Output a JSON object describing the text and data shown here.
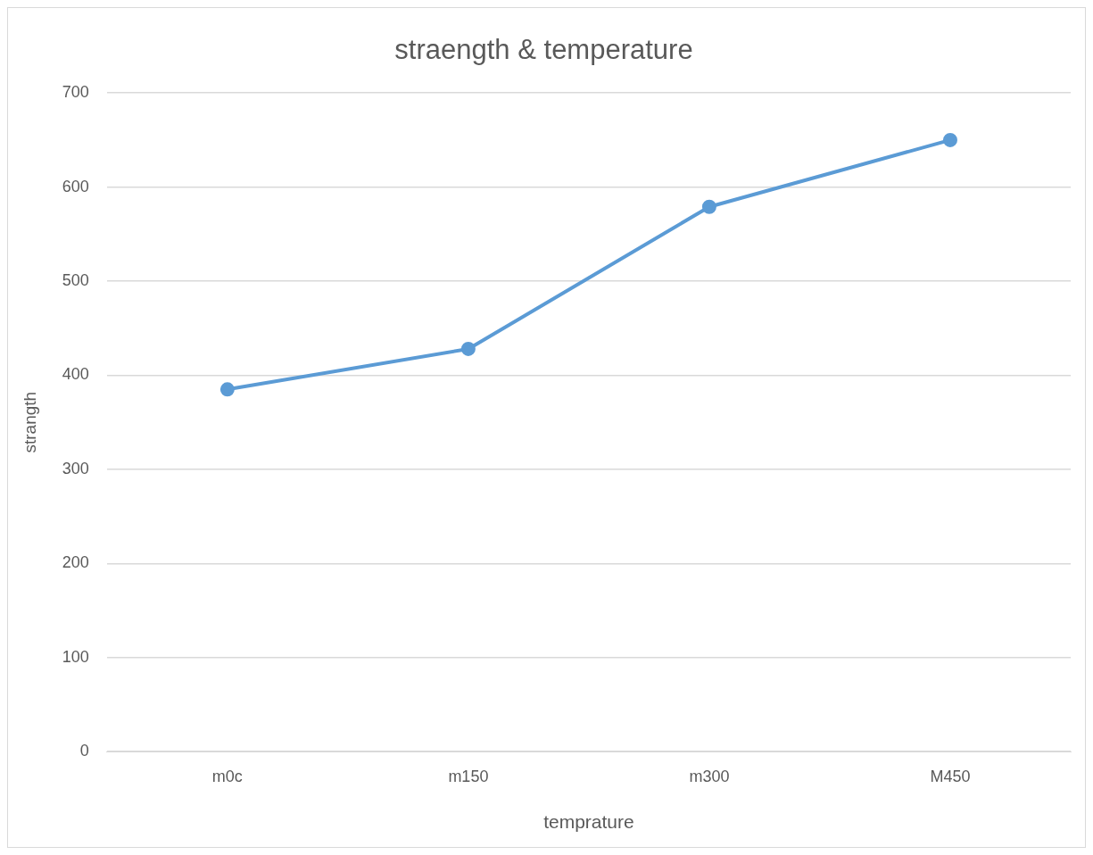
{
  "chart_data": {
    "type": "line",
    "title": "straength & temperature",
    "xlabel": "temprature",
    "ylabel": "strangth",
    "categories": [
      "m0c",
      "m150",
      "m300",
      "M450"
    ],
    "series": [
      {
        "color": "#5b9bd5",
        "values": [
          385,
          428,
          579,
          650
        ]
      }
    ],
    "ylim": [
      0,
      700
    ],
    "yticks": [
      0,
      100,
      200,
      300,
      400,
      500,
      600,
      700
    ],
    "grid": "y",
    "legend": false,
    "marker": "circle",
    "line_style": "solid"
  }
}
